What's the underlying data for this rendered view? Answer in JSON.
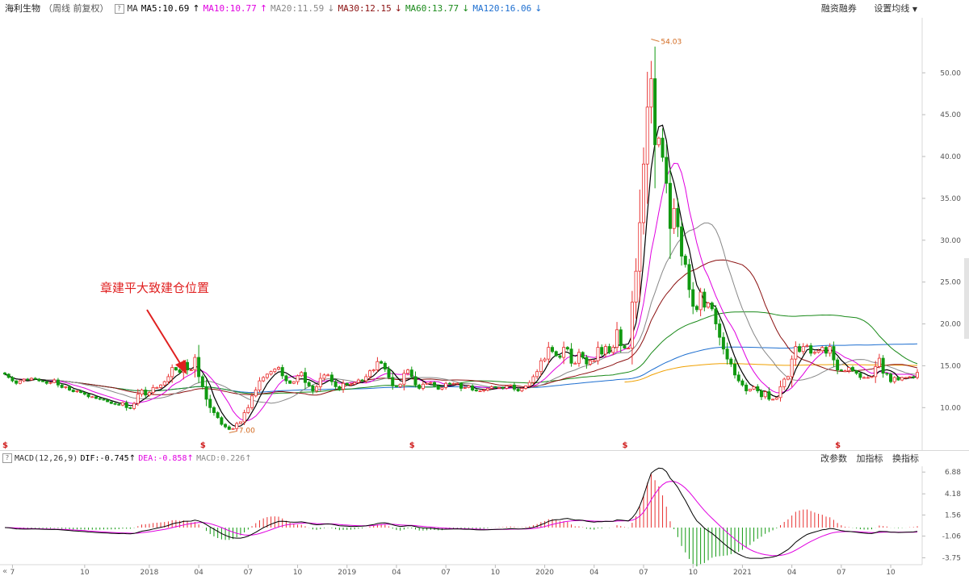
{
  "header": {
    "stock_name": "海利生物",
    "period": "（周线 前复权）",
    "help": "?",
    "ma_label": "MA",
    "ma5": "MA5:10.69",
    "ma10": "MA10:10.77",
    "ma20": "MA20:11.59",
    "ma30": "MA30:12.15",
    "ma60": "MA60:13.77",
    "ma120": "MA120:16.06",
    "arrow_up": "↑",
    "arrow_down": "↓"
  },
  "toolbar": {
    "margin_trading": "融资融券",
    "settings": "设置均线"
  },
  "macd_header": {
    "label": "MACD(12,26,9)",
    "dif": "DIF:-0.745",
    "dea": "DEA:-0.858",
    "macd": "MACD:0.226",
    "change_params": "改参数",
    "add_indicator": "加指标",
    "switch_indicator": "换指标"
  },
  "annotation": {
    "text": "章建平大致建仓位置"
  },
  "colors": {
    "up": "#e83030",
    "down": "#119911",
    "ma5": "#000000",
    "ma10": "#e000e0",
    "ma20": "#888888",
    "ma30": "#8b1010",
    "ma60": "#1a8a1a",
    "ma120": "#1e6fd0",
    "ma250": "#f0a000",
    "annotation": "#e02020",
    "axis_text": "#555555"
  },
  "chart_data": [
    {
      "type": "candlestick",
      "ylim": [
        5.5,
        56
      ],
      "yticks": [
        "50.00",
        "45.00",
        "40.00",
        "35.00",
        "30.00",
        "25.00",
        "20.00",
        "15.00",
        "10.00"
      ],
      "ytick_values": [
        50,
        45,
        40,
        35,
        30,
        25,
        20,
        15,
        10
      ],
      "xlabels": [
        "7",
        "10",
        "2018",
        "04",
        "07",
        "10",
        "2019",
        "04",
        "07",
        "10",
        "2020",
        "04",
        "07",
        "10",
        "2021",
        "04",
        "07",
        "10"
      ],
      "xlabel_weeks": [
        2,
        21,
        38,
        51,
        64,
        77,
        90,
        103,
        116,
        129,
        142,
        155,
        168,
        181,
        194,
        207,
        220,
        233
      ],
      "high_label": "54.03",
      "low_label": "7.00",
      "dividend_marker": "$",
      "dividend_weeks": [
        0,
        52,
        107,
        163,
        219
      ],
      "closes": [
        14.0,
        13.6,
        13.2,
        12.9,
        13.2,
        13.4,
        13.3,
        13.5,
        13.4,
        13.2,
        13.1,
        12.9,
        13.0,
        13.3,
        12.7,
        12.4,
        12.5,
        12.1,
        11.9,
        12.0,
        11.8,
        11.6,
        11.3,
        11.3,
        11.1,
        11.0,
        10.9,
        10.7,
        10.5,
        10.4,
        10.3,
        10.6,
        10.0,
        9.9,
        10.5,
        11.6,
        12.1,
        11.5,
        11.8,
        12.4,
        12.4,
        12.7,
        13.1,
        13.7,
        14.8,
        14.5,
        14.2,
        15.4,
        14.5,
        14.5,
        16.0,
        13.7,
        12.5,
        11.0,
        10.0,
        9.4,
        8.8,
        8.0,
        7.7,
        7.4,
        7.5,
        8.1,
        8.3,
        9.4,
        10.0,
        11.4,
        12.1,
        13.2,
        13.6,
        14.0,
        14.3,
        14.6,
        14.8,
        13.8,
        13.2,
        12.9,
        13.1,
        13.8,
        14.2,
        13.0,
        12.6,
        12.0,
        12.5,
        13.5,
        13.9,
        13.9,
        13.1,
        12.5,
        12.2,
        12.9,
        12.7,
        12.8,
        13.0,
        13.3,
        13.2,
        13.7,
        14.4,
        14.5,
        15.5,
        15.3,
        14.6,
        13.6,
        12.6,
        12.5,
        12.8,
        14.1,
        14.5,
        13.7,
        12.7,
        12.3,
        12.8,
        12.9,
        13.0,
        12.6,
        12.2,
        12.4,
        12.9,
        12.8,
        12.9,
        12.9,
        12.3,
        12.4,
        12.6,
        12.1,
        12.0,
        12.0,
        12.1,
        12.3,
        12.5,
        12.4,
        12.4,
        12.3,
        12.6,
        12.7,
        12.2,
        12.0,
        12.3,
        12.6,
        13.0,
        13.7,
        14.3,
        15.6,
        15.8,
        17.2,
        16.7,
        16.2,
        16.0,
        17.2,
        17.0,
        15.3,
        15.3,
        16.6,
        16.0,
        15.2,
        15.6,
        15.6,
        17.2,
        16.4,
        17.3,
        16.6,
        17.2,
        19.3,
        17.4,
        17.1,
        17.1,
        22.6,
        26.3,
        32.1,
        39.1,
        45.9,
        49.3,
        41.4,
        42.2,
        39.9,
        36.8,
        31.4,
        33.8,
        31.6,
        28.1,
        27.1,
        24.1,
        22.1,
        21.7,
        23.8,
        22.0,
        22.5,
        21.8,
        20.0,
        18.4,
        17.0,
        15.8,
        15.2,
        13.9,
        13.2,
        12.7,
        12.0,
        12.2,
        12.5,
        12.0,
        11.3,
        11.9,
        11.0,
        11.0,
        11.2,
        12.5,
        13.4,
        13.7,
        15.8,
        17.3,
        16.7,
        17.3,
        17.4,
        16.5,
        16.6,
        16.8,
        17.2,
        16.5,
        17.3,
        15.7,
        14.5,
        14.4,
        14.4,
        14.8,
        14.4,
        14.1,
        13.6,
        13.6,
        13.6,
        13.7,
        14.9,
        15.9,
        14.1,
        14.0,
        13.1,
        13.6,
        13.3,
        13.6,
        13.6,
        13.7,
        13.6,
        14.2
      ]
    },
    {
      "type": "macd",
      "yticks": [
        "6.88",
        "4.18",
        "1.56",
        "-1.06",
        "-3.75"
      ],
      "ytick_values": [
        6.88,
        4.18,
        1.56,
        -1.06,
        -3.75
      ],
      "ylim": [
        -4.3,
        7.4
      ]
    }
  ]
}
